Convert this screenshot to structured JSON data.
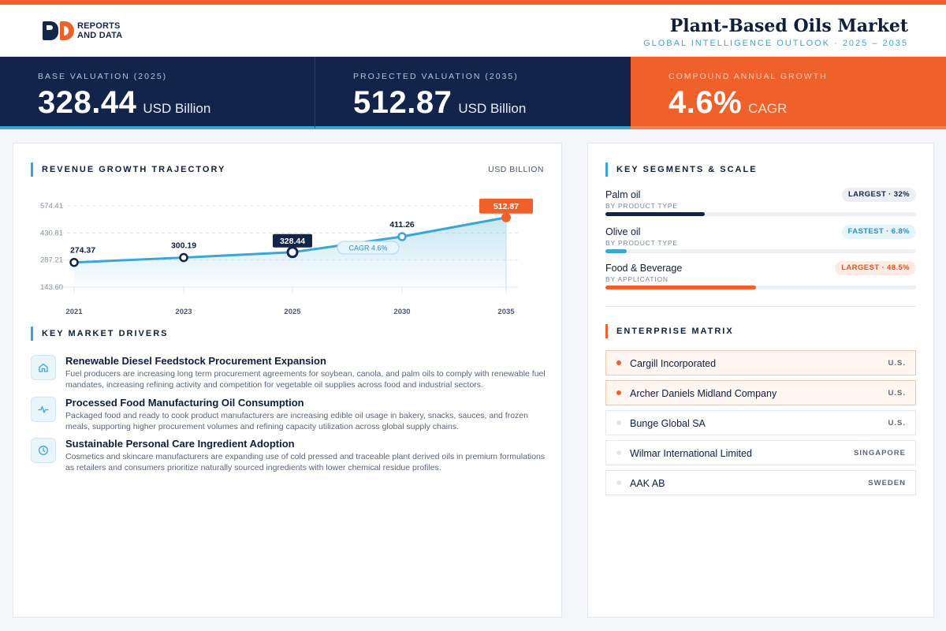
{
  "brand": {
    "line1": "REPORTS",
    "line2": "AND DATA"
  },
  "header": {
    "title": "Plant-Based Oils Market",
    "subtitle": "GLOBAL INTELLIGENCE OUTLOOK  ·  2025 – 2035"
  },
  "stats": [
    {
      "label": "BASE VALUATION (2025)",
      "value": "328.44",
      "unit": "USD Billion"
    },
    {
      "label": "PROJECTED VALUATION (2035)",
      "value": "512.87",
      "unit": "USD Billion"
    },
    {
      "label": "COMPOUND ANNUAL GROWTH",
      "value": "4.6%",
      "unit": "CAGR"
    }
  ],
  "chart_section": {
    "title": "REVENUE GROWTH TRAJECTORY",
    "unit": "USD BILLION"
  },
  "chart_data": {
    "type": "line",
    "x": [
      "2021",
      "2023",
      "2025",
      "2030",
      "2035"
    ],
    "values": [
      274.37,
      300.19,
      328.44,
      411.26,
      512.87
    ],
    "yticks": [
      143.6,
      287.21,
      430.81,
      574.41
    ],
    "ylim": [
      143.6,
      574.41
    ],
    "annotation": "CAGR 4.6%",
    "highlight_base_index": 2,
    "highlight_end_index": 4,
    "grid": true,
    "colors": {
      "line": "#3aa6d6",
      "base": "#13244a",
      "end": "#f0602b"
    }
  },
  "drivers_section": {
    "title": "KEY MARKET DRIVERS"
  },
  "drivers": [
    {
      "icon": "home-icon",
      "title": "Renewable Diesel Feedstock Procurement Expansion",
      "desc": "Fuel producers are increasing long term procurement agreements for soybean, canola, and palm oils to comply with renewable fuel mandates, increasing refining activity and competition for vegetable oil supplies across food and industrial sectors."
    },
    {
      "icon": "pulse-icon",
      "title": "Processed Food Manufacturing Oil Consumption",
      "desc": "Packaged food and ready to cook product manufacturers are increasing edible oil usage in bakery, snacks, sauces, and frozen meals, supporting higher procurement volumes and refining capacity utilization across global supply chains."
    },
    {
      "icon": "clock-icon",
      "title": "Sustainable Personal Care Ingredient Adoption",
      "desc": "Cosmetics and skincare manufacturers are expanding use of cold pressed and traceable plant derived oils in premium formulations as retailers and consumers prioritize naturally sourced ingredients with lower chemical residue profiles."
    }
  ],
  "segments_section": {
    "title": "KEY SEGMENTS & SCALE"
  },
  "segments": [
    {
      "name": "Palm oil",
      "category": "BY PRODUCT TYPE",
      "badge": "LARGEST · 32%",
      "share": 0.32,
      "color": "#13244a",
      "badge_bg": "#eceff4",
      "badge_fg": "#13244a"
    },
    {
      "name": "Olive oil",
      "category": "BY PRODUCT TYPE",
      "badge": "FASTEST · 6.8%",
      "share": 0.068,
      "color": "#3aa6d6",
      "badge_bg": "#e6f4fb",
      "badge_fg": "#2a8fc0"
    },
    {
      "name": "Food & Beverage",
      "category": "BY APPLICATION",
      "badge": "LARGEST · 48.5%",
      "share": 0.485,
      "color": "#f0602b",
      "badge_bg": "#fdece4",
      "badge_fg": "#e0552a"
    }
  ],
  "enterprise_section": {
    "title": "ENTERPRISE MATRIX"
  },
  "enterprises": [
    {
      "name": "Cargill Incorporated",
      "country": "U.S.",
      "highlight": true
    },
    {
      "name": "Archer Daniels Midland Company",
      "country": "U.S.",
      "highlight": true
    },
    {
      "name": "Bunge Global SA",
      "country": "U.S.",
      "highlight": false
    },
    {
      "name": "Wilmar International Limited",
      "country": "SINGAPORE",
      "highlight": false
    },
    {
      "name": "AAK AB",
      "country": "SWEDEN",
      "highlight": false
    }
  ]
}
